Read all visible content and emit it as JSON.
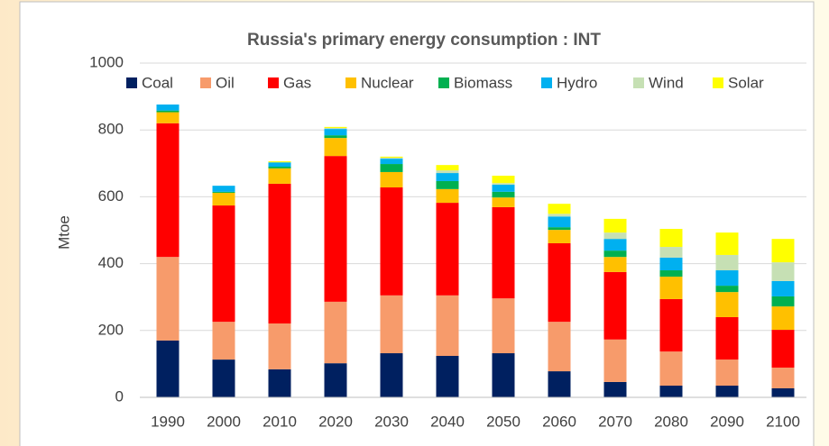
{
  "chart_data": {
    "type": "stacked_bar",
    "title": "Russia's primary energy consumption : INT",
    "y_label": "Mtoe",
    "categories": [
      "1990",
      "2000",
      "2010",
      "2020",
      "2030",
      "2040",
      "2050",
      "2060",
      "2070",
      "2080",
      "2090",
      "2100"
    ],
    "series": [
      {
        "name": "Coal",
        "color": "#002060",
        "values": [
          170,
          113,
          84,
          102,
          132,
          124,
          132,
          78,
          46,
          35,
          35,
          27
        ]
      },
      {
        "name": "Oil",
        "color": "#f79b6b",
        "values": [
          250,
          113,
          137,
          184,
          173,
          181,
          164,
          148,
          127,
          102,
          78,
          62
        ]
      },
      {
        "name": "Gas",
        "color": "#ff0000",
        "values": [
          400,
          348,
          418,
          436,
          323,
          277,
          273,
          235,
          202,
          157,
          127,
          113
        ]
      },
      {
        "name": "Nuclear",
        "color": "#ffc000",
        "values": [
          33,
          38,
          46,
          54,
          46,
          41,
          29,
          40,
          45,
          67,
          75,
          70
        ]
      },
      {
        "name": "Biomass",
        "color": "#00b050",
        "values": [
          5,
          3,
          5,
          8,
          24,
          24,
          17,
          8,
          19,
          19,
          19,
          30
        ]
      },
      {
        "name": "Hydro",
        "color": "#00b0f0",
        "values": [
          18,
          18,
          13,
          19,
          16,
          24,
          21,
          32,
          35,
          38,
          46,
          46
        ]
      },
      {
        "name": "Wind",
        "color": "#c6e0b4",
        "values": [
          0,
          0,
          0,
          3,
          3,
          8,
          5,
          8,
          19,
          32,
          46,
          56
        ]
      },
      {
        "name": "Solar",
        "color": "#ffff00",
        "values": [
          0,
          0,
          3,
          3,
          3,
          16,
          22,
          30,
          41,
          54,
          67,
          70
        ]
      }
    ],
    "ylim": [
      0,
      1000
    ],
    "yticks": [
      0,
      200,
      400,
      600,
      800,
      1000
    ],
    "grid": true,
    "legend": "top"
  }
}
